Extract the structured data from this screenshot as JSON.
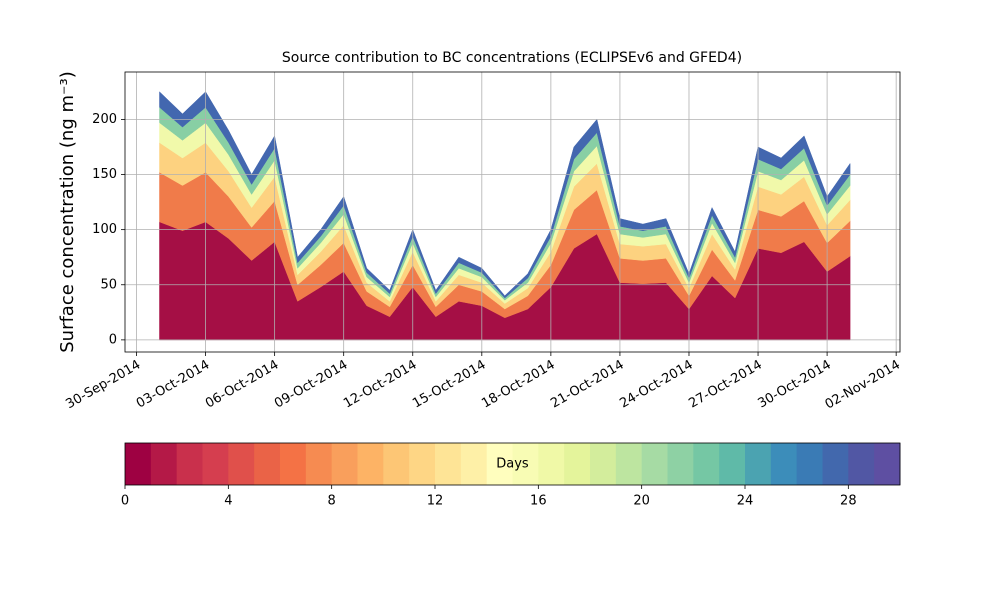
{
  "chart_data": {
    "type": "stackedarea",
    "title": "Source contribution to BC concentrations (ECLIPSEv6 and GFED4)",
    "ylabel": "Surface concentration (ng m⁻³)",
    "x": [
      "2014-10-01",
      "2014-10-02",
      "2014-10-03",
      "2014-10-04",
      "2014-10-05",
      "2014-10-06",
      "2014-10-07",
      "2014-10-08",
      "2014-10-09",
      "2014-10-10",
      "2014-10-11",
      "2014-10-12",
      "2014-10-13",
      "2014-10-14",
      "2014-10-15",
      "2014-10-16",
      "2014-10-17",
      "2014-10-18",
      "2014-10-19",
      "2014-10-20",
      "2014-10-21",
      "2014-10-22",
      "2014-10-23",
      "2014-10-24",
      "2014-10-25",
      "2014-10-26",
      "2014-10-27",
      "2014-10-28",
      "2014-10-29",
      "2014-10-30",
      "2014-10-31"
    ],
    "series": [
      {
        "color": "#a50f45",
        "values": [
          107,
          99,
          107,
          92,
          72,
          89,
          35,
          48,
          62,
          31,
          21,
          48,
          21,
          35,
          31,
          20,
          28,
          48,
          83,
          96,
          52,
          51,
          52,
          28,
          58,
          38,
          83,
          79,
          89,
          62,
          76
        ]
      },
      {
        "color": "#f07b4a",
        "values": [
          45,
          41,
          45,
          38,
          30,
          37,
          15,
          20,
          26,
          13,
          9,
          20,
          9,
          15,
          13,
          8,
          12,
          20,
          35,
          40,
          22,
          21,
          22,
          12,
          24,
          16,
          35,
          33,
          37,
          26,
          32
        ]
      },
      {
        "color": "#fdd280",
        "values": [
          27,
          25,
          27,
          23,
          18,
          22,
          9,
          12,
          16,
          8,
          5,
          12,
          5,
          9,
          8,
          5,
          7,
          12,
          21,
          24,
          13,
          13,
          13,
          7,
          14,
          10,
          21,
          20,
          22,
          16,
          19
        ]
      },
      {
        "color": "#f1f9aa",
        "values": [
          18,
          16,
          18,
          15,
          12,
          15,
          6,
          8,
          10,
          5,
          4,
          8,
          4,
          6,
          5,
          3,
          5,
          8,
          14,
          16,
          9,
          8,
          9,
          5,
          10,
          6,
          14,
          13,
          15,
          10,
          13
        ]
      },
      {
        "color": "#88cfa4",
        "values": [
          14,
          12,
          14,
          11,
          9,
          11,
          5,
          6,
          8,
          4,
          3,
          6,
          3,
          5,
          4,
          2,
          4,
          6,
          11,
          12,
          7,
          6,
          7,
          4,
          7,
          5,
          11,
          10,
          11,
          8,
          10
        ]
      },
      {
        "color": "#4367af",
        "values": [
          14,
          12,
          14,
          11,
          9,
          11,
          5,
          6,
          8,
          4,
          3,
          6,
          3,
          5,
          4,
          2,
          4,
          6,
          11,
          12,
          7,
          6,
          7,
          4,
          7,
          5,
          11,
          10,
          11,
          8,
          10
        ]
      }
    ],
    "xlim": [
      "2014-09-29T12:00",
      "2014-11-02T04:00"
    ],
    "xticks": [
      {
        "value": "2014-09-30",
        "label": "30-Sep-2014"
      },
      {
        "value": "2014-10-03",
        "label": "03-Oct-2014"
      },
      {
        "value": "2014-10-06",
        "label": "06-Oct-2014"
      },
      {
        "value": "2014-10-09",
        "label": "09-Oct-2014"
      },
      {
        "value": "2014-10-12",
        "label": "12-Oct-2014"
      },
      {
        "value": "2014-10-15",
        "label": "15-Oct-2014"
      },
      {
        "value": "2014-10-18",
        "label": "18-Oct-2014"
      },
      {
        "value": "2014-10-21",
        "label": "21-Oct-2014"
      },
      {
        "value": "2014-10-24",
        "label": "24-Oct-2014"
      },
      {
        "value": "2014-10-27",
        "label": "27-Oct-2014"
      },
      {
        "value": "2014-10-30",
        "label": "30-Oct-2014"
      },
      {
        "value": "2014-11-02",
        "label": "02-Nov-2014"
      }
    ],
    "ylim": [
      -11,
      243
    ],
    "yticks": [
      0,
      50,
      100,
      150,
      200
    ],
    "grid": true,
    "colorbar": {
      "label": "Days",
      "lim": [
        0,
        30
      ],
      "ticks": [
        0,
        4,
        8,
        12,
        16,
        20,
        24,
        28
      ],
      "colors": [
        "#9e0142",
        "#b41947",
        "#c9304c",
        "#d53e4f",
        "#e0504b",
        "#ea6347",
        "#f47245",
        "#f68b51",
        "#f99f5c",
        "#fdb365",
        "#fdc675",
        "#fed685",
        "#fee496",
        "#fef0a7",
        "#fffebe",
        "#f8fcb4",
        "#f0f9a7",
        "#e4f49b",
        "#d3ed9c",
        "#bde5a0",
        "#a6dba4",
        "#8ed1a4",
        "#75c7a4",
        "#5fbaa8",
        "#4ba3b1",
        "#3c8dba",
        "#3a7bb5",
        "#4268ad",
        "#5157a4",
        "#5e4fa2"
      ]
    }
  }
}
